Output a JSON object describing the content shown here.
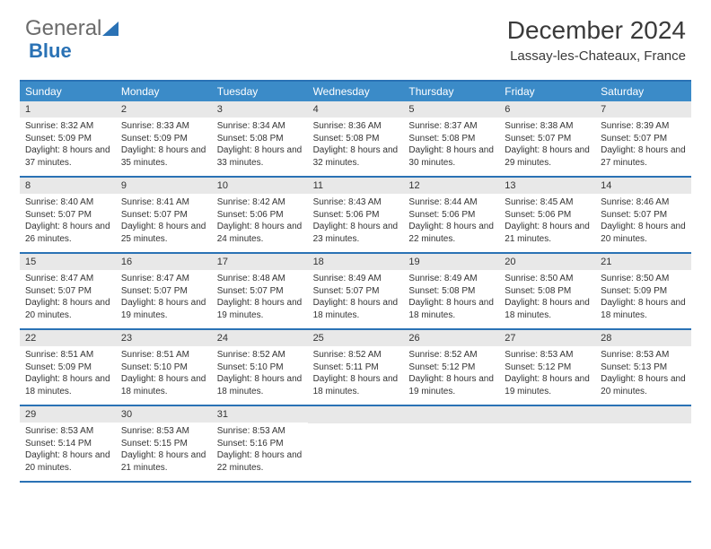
{
  "brand": {
    "part1": "General",
    "part2": "Blue"
  },
  "title": "December 2024",
  "location": "Lassay-les-Chateaux, France",
  "colors": {
    "header_bg": "#3b8bc8",
    "border": "#2a72b5",
    "daynum_bg": "#e8e8e8",
    "text": "#333333",
    "title_text": "#3a3a3a"
  },
  "weekdays": [
    "Sunday",
    "Monday",
    "Tuesday",
    "Wednesday",
    "Thursday",
    "Friday",
    "Saturday"
  ],
  "weeks": [
    [
      {
        "n": "1",
        "sr": "8:32 AM",
        "ss": "5:09 PM",
        "dl": "8 hours and 37 minutes."
      },
      {
        "n": "2",
        "sr": "8:33 AM",
        "ss": "5:09 PM",
        "dl": "8 hours and 35 minutes."
      },
      {
        "n": "3",
        "sr": "8:34 AM",
        "ss": "5:08 PM",
        "dl": "8 hours and 33 minutes."
      },
      {
        "n": "4",
        "sr": "8:36 AM",
        "ss": "5:08 PM",
        "dl": "8 hours and 32 minutes."
      },
      {
        "n": "5",
        "sr": "8:37 AM",
        "ss": "5:08 PM",
        "dl": "8 hours and 30 minutes."
      },
      {
        "n": "6",
        "sr": "8:38 AM",
        "ss": "5:07 PM",
        "dl": "8 hours and 29 minutes."
      },
      {
        "n": "7",
        "sr": "8:39 AM",
        "ss": "5:07 PM",
        "dl": "8 hours and 27 minutes."
      }
    ],
    [
      {
        "n": "8",
        "sr": "8:40 AM",
        "ss": "5:07 PM",
        "dl": "8 hours and 26 minutes."
      },
      {
        "n": "9",
        "sr": "8:41 AM",
        "ss": "5:07 PM",
        "dl": "8 hours and 25 minutes."
      },
      {
        "n": "10",
        "sr": "8:42 AM",
        "ss": "5:06 PM",
        "dl": "8 hours and 24 minutes."
      },
      {
        "n": "11",
        "sr": "8:43 AM",
        "ss": "5:06 PM",
        "dl": "8 hours and 23 minutes."
      },
      {
        "n": "12",
        "sr": "8:44 AM",
        "ss": "5:06 PM",
        "dl": "8 hours and 22 minutes."
      },
      {
        "n": "13",
        "sr": "8:45 AM",
        "ss": "5:06 PM",
        "dl": "8 hours and 21 minutes."
      },
      {
        "n": "14",
        "sr": "8:46 AM",
        "ss": "5:07 PM",
        "dl": "8 hours and 20 minutes."
      }
    ],
    [
      {
        "n": "15",
        "sr": "8:47 AM",
        "ss": "5:07 PM",
        "dl": "8 hours and 20 minutes."
      },
      {
        "n": "16",
        "sr": "8:47 AM",
        "ss": "5:07 PM",
        "dl": "8 hours and 19 minutes."
      },
      {
        "n": "17",
        "sr": "8:48 AM",
        "ss": "5:07 PM",
        "dl": "8 hours and 19 minutes."
      },
      {
        "n": "18",
        "sr": "8:49 AM",
        "ss": "5:07 PM",
        "dl": "8 hours and 18 minutes."
      },
      {
        "n": "19",
        "sr": "8:49 AM",
        "ss": "5:08 PM",
        "dl": "8 hours and 18 minutes."
      },
      {
        "n": "20",
        "sr": "8:50 AM",
        "ss": "5:08 PM",
        "dl": "8 hours and 18 minutes."
      },
      {
        "n": "21",
        "sr": "8:50 AM",
        "ss": "5:09 PM",
        "dl": "8 hours and 18 minutes."
      }
    ],
    [
      {
        "n": "22",
        "sr": "8:51 AM",
        "ss": "5:09 PM",
        "dl": "8 hours and 18 minutes."
      },
      {
        "n": "23",
        "sr": "8:51 AM",
        "ss": "5:10 PM",
        "dl": "8 hours and 18 minutes."
      },
      {
        "n": "24",
        "sr": "8:52 AM",
        "ss": "5:10 PM",
        "dl": "8 hours and 18 minutes."
      },
      {
        "n": "25",
        "sr": "8:52 AM",
        "ss": "5:11 PM",
        "dl": "8 hours and 18 minutes."
      },
      {
        "n": "26",
        "sr": "8:52 AM",
        "ss": "5:12 PM",
        "dl": "8 hours and 19 minutes."
      },
      {
        "n": "27",
        "sr": "8:53 AM",
        "ss": "5:12 PM",
        "dl": "8 hours and 19 minutes."
      },
      {
        "n": "28",
        "sr": "8:53 AM",
        "ss": "5:13 PM",
        "dl": "8 hours and 20 minutes."
      }
    ],
    [
      {
        "n": "29",
        "sr": "8:53 AM",
        "ss": "5:14 PM",
        "dl": "8 hours and 20 minutes."
      },
      {
        "n": "30",
        "sr": "8:53 AM",
        "ss": "5:15 PM",
        "dl": "8 hours and 21 minutes."
      },
      {
        "n": "31",
        "sr": "8:53 AM",
        "ss": "5:16 PM",
        "dl": "8 hours and 22 minutes."
      },
      null,
      null,
      null,
      null
    ]
  ],
  "labels": {
    "sunrise": "Sunrise:",
    "sunset": "Sunset:",
    "daylight": "Daylight:"
  }
}
